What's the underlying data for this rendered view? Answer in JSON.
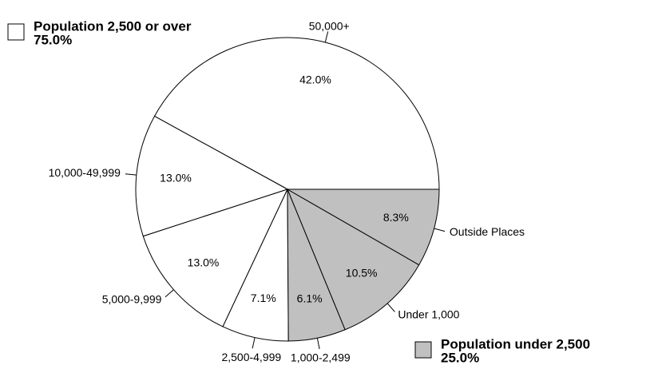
{
  "chart_data": {
    "type": "pie",
    "categories": [
      "50,000+",
      "10,000-49,999",
      "5,000-9,999",
      "2,500-4,999",
      "1,000-2,499",
      "Under 1,000",
      "Outside Places"
    ],
    "values": [
      42,
      13,
      13,
      7.1,
      6.1,
      10.5,
      8.3
    ],
    "value_labels": [
      "42.0%",
      "13.0%",
      "13.0%",
      "7.1%",
      "6.1%",
      "10.5%",
      "8.3%"
    ],
    "colors": [
      "#ffffff",
      "#ffffff",
      "#ffffff",
      "#ffffff",
      "#c0c0c0",
      "#c0c0c0",
      "#c0c0c0"
    ],
    "groups": [
      {
        "name": "Population 2,500 or over",
        "value": 75,
        "label": "75.0%",
        "color": "#ffffff"
      },
      {
        "name": "Population under 2,500",
        "value": 25,
        "label": "25.0%",
        "color": "#c0c0c0"
      }
    ]
  }
}
